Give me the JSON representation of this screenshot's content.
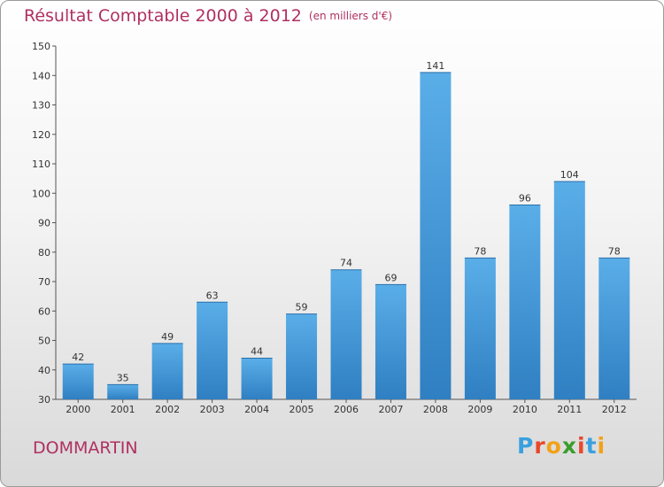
{
  "title": "Résultat Comptable 2000 à 2012",
  "subtitle": "(en milliers d'€)",
  "city": "DOMMARTIN",
  "logo": {
    "letters": [
      "P",
      "r",
      "o",
      "x",
      "i",
      "t",
      "i"
    ],
    "colors": [
      "#3aa0e0",
      "#e8482c",
      "#f2a118",
      "#3a9d2c",
      "#e8482c",
      "#3aa0e0",
      "#f2a118"
    ]
  },
  "chart_data": {
    "type": "bar",
    "categories": [
      "2000",
      "2001",
      "2002",
      "2003",
      "2004",
      "2005",
      "2006",
      "2007",
      "2008",
      "2009",
      "2010",
      "2011",
      "2012"
    ],
    "values": [
      42,
      35,
      49,
      63,
      44,
      59,
      74,
      69,
      141,
      78,
      96,
      104,
      78
    ],
    "ylim": [
      30,
      150
    ],
    "yticks": [
      30,
      40,
      50,
      60,
      70,
      80,
      90,
      100,
      110,
      120,
      130,
      140,
      150
    ],
    "bar_color": "#3d95d8",
    "grid": false
  }
}
